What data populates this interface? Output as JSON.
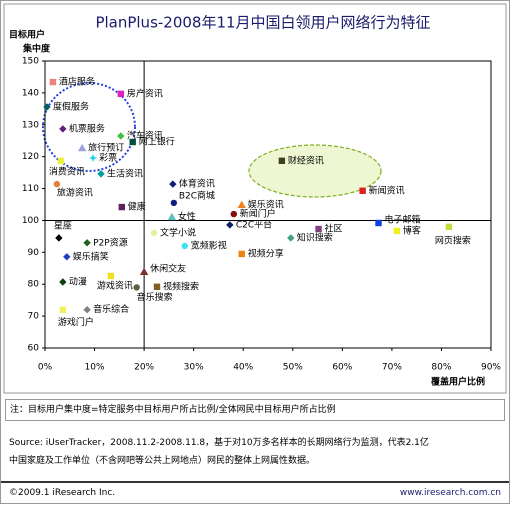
{
  "chart_data": {
    "type": "scatter",
    "title": "PlanPlus-2008年11月中国白领用户网络行为特征",
    "ylabel": [
      "目标用户",
      "集中度"
    ],
    "xlabel": "覆盖用户比例",
    "xlim": [
      0,
      90
    ],
    "ylim": [
      60,
      150
    ],
    "xticks": [
      {
        "value": 0,
        "label": "0%"
      },
      {
        "value": 10,
        "label": "10%"
      },
      {
        "value": 20,
        "label": "20%"
      },
      {
        "value": 30,
        "label": "30%"
      },
      {
        "value": 40,
        "label": "40%"
      },
      {
        "value": 50,
        "label": "50%"
      },
      {
        "value": 60,
        "label": "60%"
      },
      {
        "value": 70,
        "label": "70%"
      },
      {
        "value": 80,
        "label": "80%"
      },
      {
        "value": 90,
        "label": "90%"
      }
    ],
    "yticks": [
      60,
      70,
      80,
      90,
      100,
      110,
      120,
      130,
      140,
      150
    ],
    "xref": 20,
    "yref": 100,
    "points": [
      {
        "label": "酒店服务",
        "x": 1.6,
        "y": 143.4,
        "color": "#f08080",
        "marker": "square"
      },
      {
        "label": "房产资讯",
        "x": 15.3,
        "y": 139.7,
        "color": "#e020c0",
        "marker": "square"
      },
      {
        "label": "度假服务",
        "x": 0.4,
        "y": 135.6,
        "color": "#006060",
        "marker": "diamond"
      },
      {
        "label": "机票服务",
        "x": 3.6,
        "y": 128.7,
        "color": "#602080",
        "marker": "diamond"
      },
      {
        "label": "汽车资讯",
        "x": 15.3,
        "y": 126.5,
        "color": "#40c040",
        "marker": "diamond"
      },
      {
        "label": "网上银行",
        "x": 17.7,
        "y": 124.6,
        "color": "#005040",
        "marker": "square"
      },
      {
        "label": "旅行预订",
        "x": 7.5,
        "y": 122.7,
        "color": "#a0a0e0",
        "marker": "triangle"
      },
      {
        "label": "彩票",
        "x": 9.7,
        "y": 119.6,
        "color": "#20d0f0",
        "marker": "star"
      },
      {
        "label": "消费资讯",
        "x": 3.2,
        "y": 118.7,
        "color": "#f0f040",
        "marker": "square"
      },
      {
        "label": "生活资讯",
        "x": 11.3,
        "y": 114.6,
        "color": "#00a0a0",
        "marker": "diamond"
      },
      {
        "label": "旅游资讯",
        "x": 2.4,
        "y": 111.4,
        "color": "#e08040",
        "marker": "circle"
      },
      {
        "label": "体育资讯",
        "x": 25.8,
        "y": 111.4,
        "color": "#102080",
        "marker": "diamond"
      },
      {
        "label": "财经资讯",
        "x": 47.8,
        "y": 118.7,
        "color": "#404020",
        "marker": "square"
      },
      {
        "label": "新闻资讯",
        "x": 64.1,
        "y": 109.3,
        "color": "#e02020",
        "marker": "square"
      },
      {
        "label": "B2C商城",
        "x": 26,
        "y": 105.5,
        "color": "#102080",
        "marker": "circle"
      },
      {
        "label": "娱乐资讯",
        "x": 39.7,
        "y": 104.9,
        "color": "#f08020",
        "marker": "triangle"
      },
      {
        "label": "健康",
        "x": 15.5,
        "y": 104.2,
        "color": "#602060",
        "marker": "square"
      },
      {
        "label": "新闻门户",
        "x": 38.1,
        "y": 102,
        "color": "#801010",
        "marker": "circle"
      },
      {
        "label": "女性",
        "x": 25.6,
        "y": 101.1,
        "color": "#60c0c0",
        "marker": "triangle"
      },
      {
        "label": "电子邮箱",
        "x": 67.3,
        "y": 99.2,
        "color": "#1040e0",
        "marker": "square"
      },
      {
        "label": "C2C平台",
        "x": 37.3,
        "y": 98.6,
        "color": "#102060",
        "marker": "diamond"
      },
      {
        "label": "网页搜索",
        "x": 81.5,
        "y": 98,
        "color": "#c0e040",
        "marker": "square"
      },
      {
        "label": "社区",
        "x": 55.2,
        "y": 97.3,
        "color": "#804080",
        "marker": "square"
      },
      {
        "label": "博客",
        "x": 71,
        "y": 96.7,
        "color": "#f0f020",
        "marker": "square"
      },
      {
        "label": "文学小说",
        "x": 22,
        "y": 96.1,
        "color": "#e0f0a0",
        "marker": "circle"
      },
      {
        "label": "知识搜索",
        "x": 49.6,
        "y": 94.5,
        "color": "#40a080",
        "marker": "diamond"
      },
      {
        "label": "星座",
        "x": 2.8,
        "y": 94.5,
        "color": "#000000",
        "marker": "diamond"
      },
      {
        "label": "P2P资源",
        "x": 8.5,
        "y": 93,
        "color": "#206020",
        "marker": "diamond"
      },
      {
        "label": "宽频影视",
        "x": 28.2,
        "y": 92,
        "color": "#40e0f0",
        "marker": "circle"
      },
      {
        "label": "视频分享",
        "x": 39.7,
        "y": 89.5,
        "color": "#f08010",
        "marker": "square"
      },
      {
        "label": "娱乐搞笑",
        "x": 4.4,
        "y": 88.6,
        "color": "#2040c0",
        "marker": "diamond"
      },
      {
        "label": "休闲交友",
        "x": 20,
        "y": 83.9,
        "color": "#803030",
        "marker": "triangle"
      },
      {
        "label": "游戏资讯",
        "x": 13.3,
        "y": 82.6,
        "color": "#f0e020",
        "marker": "square"
      },
      {
        "label": "动漫",
        "x": 3.6,
        "y": 80.7,
        "color": "#104010",
        "marker": "diamond"
      },
      {
        "label": "视频搜索",
        "x": 22.6,
        "y": 79.2,
        "color": "#806020",
        "marker": "square"
      },
      {
        "label": "音乐搜索",
        "x": 18.5,
        "y": 79,
        "color": "#606040",
        "marker": "circle"
      },
      {
        "label": "音乐综合",
        "x": 8.5,
        "y": 72,
        "color": "#808080",
        "marker": "diamond"
      },
      {
        "label": "游戏门户",
        "x": 3.6,
        "y": 72,
        "color": "#f0f060",
        "marker": "square"
      }
    ]
  },
  "note": "注：目标用户集中度=特定服务中目标用户所占比例/全体网民中目标用户所占比例",
  "source": [
    "Source: iUserTracker，2008.11.2-2008.11.8，基于对10万多名样本的长期网络行为监测，代表2.1亿",
    "中国家庭及工作单位（不含网吧等公共上网地点）网民的整体上网属性数据。"
  ],
  "footer": {
    "left": "©2009.1 iResearch Inc.",
    "right": "www.iresearch.com.cn"
  }
}
